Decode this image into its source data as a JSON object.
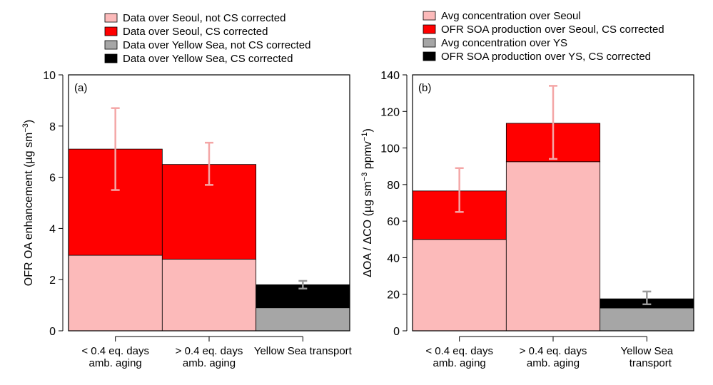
{
  "chart_data": [
    {
      "type": "bar",
      "stacked": true,
      "panel_label": "(a)",
      "ylabel": "OFR OA enhancement (µg sm",
      "ylabel_exp": "−3",
      "ylabel_close": ")",
      "ylim": [
        0,
        10
      ],
      "yticks": [
        0,
        2,
        4,
        6,
        8,
        10
      ],
      "categories": [
        [
          "< 0.4 eq. days",
          "amb. aging"
        ],
        [
          "> 0.4 eq. days",
          "amb. aging"
        ],
        [
          "Yellow Sea transport"
        ]
      ],
      "legend": {
        "placement": "top",
        "entries": [
          {
            "label": "Data over Seoul, not CS corrected",
            "color": "#fcbaba"
          },
          {
            "label": "Data over Seoul, CS corrected",
            "color": "#ff0000"
          },
          {
            "label": "Data over Yellow Sea,  not CS corrected",
            "color": "#a6a6a6"
          },
          {
            "label": "Data over Yellow Sea,  CS corrected",
            "color": "#000000"
          }
        ]
      },
      "bars": [
        {
          "base": 2.95,
          "total": 7.1,
          "base_color": "#fcbaba",
          "top_color": "#ff0000",
          "err_low": 5.5,
          "err_high": 8.7,
          "err_color": "#f4a6a6"
        },
        {
          "base": 2.8,
          "total": 6.5,
          "base_color": "#fcbaba",
          "top_color": "#ff0000",
          "err_low": 5.7,
          "err_high": 7.35,
          "err_color": "#f4a6a6"
        },
        {
          "base": 0.9,
          "total": 1.8,
          "base_color": "#a6a6a6",
          "top_color": "#000000",
          "err_low": 1.65,
          "err_high": 1.95,
          "err_color": "#9a9a9a"
        }
      ]
    },
    {
      "type": "bar",
      "stacked": true,
      "panel_label": "(b)",
      "ylabel": "ΔOA / ΔCO (µg sm",
      "ylabel_exp": "−3",
      "ylabel_mid": " ppmv",
      "ylabel_exp2": "−1",
      "ylabel_close": ")",
      "ylim": [
        0,
        140
      ],
      "yticks": [
        0,
        20,
        40,
        60,
        80,
        100,
        120,
        140
      ],
      "categories": [
        [
          "< 0.4 eq. days",
          "amb. aging"
        ],
        [
          "> 0.4 eq. days",
          "amb. aging"
        ],
        [
          "Yellow Sea",
          "transport"
        ]
      ],
      "legend": {
        "placement": "top",
        "entries": [
          {
            "label": "Avg concentration over Seoul",
            "color": "#fcbaba"
          },
          {
            "label": " OFR SOA production over Seoul, CS corrected",
            "color": "#ff0000"
          },
          {
            "label": "Avg concentration over YS",
            "color": "#a6a6a6"
          },
          {
            "label": " OFR SOA production over YS,  CS corrected",
            "color": "#000000"
          }
        ]
      },
      "bars": [
        {
          "base": 50,
          "total": 76.5,
          "base_color": "#fcbaba",
          "top_color": "#ff0000",
          "err_low": 65,
          "err_high": 89,
          "err_color": "#f4a6a6"
        },
        {
          "base": 92.5,
          "total": 113.5,
          "base_color": "#fcbaba",
          "top_color": "#ff0000",
          "err_low": 94,
          "err_high": 134,
          "err_color": "#f4a6a6"
        },
        {
          "base": 12.5,
          "total": 17.5,
          "base_color": "#a6a6a6",
          "top_color": "#000000",
          "err_low": 14.5,
          "err_high": 21.5,
          "err_color": "#9a9a9a"
        }
      ]
    }
  ]
}
